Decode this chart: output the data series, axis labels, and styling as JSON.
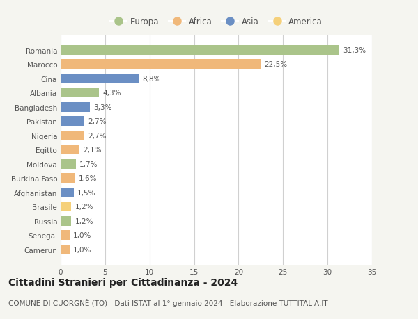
{
  "categories": [
    "Camerun",
    "Senegal",
    "Russia",
    "Brasile",
    "Afghanistan",
    "Burkina Faso",
    "Moldova",
    "Egitto",
    "Nigeria",
    "Pakistan",
    "Bangladesh",
    "Albania",
    "Cina",
    "Marocco",
    "Romania"
  ],
  "values": [
    1.0,
    1.0,
    1.2,
    1.2,
    1.5,
    1.6,
    1.7,
    2.1,
    2.7,
    2.7,
    3.3,
    4.3,
    8.8,
    22.5,
    31.3
  ],
  "labels": [
    "1,0%",
    "1,0%",
    "1,2%",
    "1,2%",
    "1,5%",
    "1,6%",
    "1,7%",
    "2,1%",
    "2,7%",
    "2,7%",
    "3,3%",
    "4,3%",
    "8,8%",
    "22,5%",
    "31,3%"
  ],
  "colors": [
    "#f0b87a",
    "#f0b87a",
    "#aac48a",
    "#f5d07a",
    "#6b8fc4",
    "#f0b87a",
    "#aac48a",
    "#f0b87a",
    "#f0b87a",
    "#6b8fc4",
    "#6b8fc4",
    "#aac48a",
    "#6b8fc4",
    "#f0b87a",
    "#aac48a"
  ],
  "continent_colors": {
    "Europa": "#aac48a",
    "Africa": "#f0b87a",
    "Asia": "#6b8fc4",
    "America": "#f5d07a"
  },
  "legend_order": [
    "Europa",
    "Africa",
    "Asia",
    "America"
  ],
  "title": "Cittadini Stranieri per Cittadinanza - 2024",
  "subtitle": "COMUNE DI CUORGNÈ (TO) - Dati ISTAT al 1° gennaio 2024 - Elaborazione TUTTITALIA.IT",
  "xlim": [
    0,
    35
  ],
  "xticks": [
    0,
    5,
    10,
    15,
    20,
    25,
    30,
    35
  ],
  "bg_color": "#f5f5f0",
  "bar_bg_color": "#ffffff",
  "grid_color": "#d0d0d0",
  "title_fontsize": 10,
  "subtitle_fontsize": 7.5,
  "label_fontsize": 7.5,
  "tick_fontsize": 7.5,
  "legend_fontsize": 8.5
}
